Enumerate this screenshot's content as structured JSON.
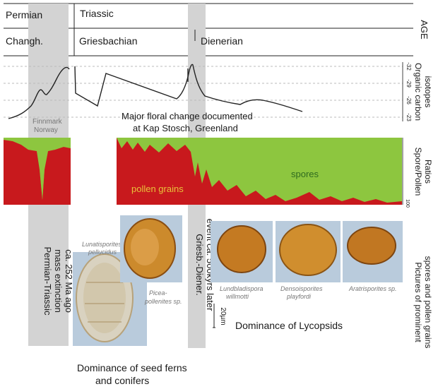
{
  "colors": {
    "pollen": "#c8191d",
    "spores": "#8dc63f",
    "event_band": "#d3d3d3",
    "curve": "#222222"
  },
  "age_rows": {
    "periods": [
      "Permian",
      "Triassic"
    ],
    "stages": [
      "Changh.",
      "Griesbachian",
      "Dienerian"
    ]
  },
  "right_labels": {
    "age": "AGE",
    "isotopes": "Organic carbon isotopes",
    "isotope_ticks": [
      "-32",
      "-29",
      "-26",
      "-23"
    ],
    "ratios": "Spore/Pollen Ratios",
    "ratio_tick": "100",
    "pictures": "Pictures of prominent spores and pollen grains"
  },
  "curve_labels": {
    "location": "Finnmark Norway",
    "floral_change": "Major floral change documented at Kap Stosch, Greenland"
  },
  "ratio_labels": {
    "pollen": "pollen grains",
    "spores": "spores"
  },
  "events": {
    "extinction": "Permian-Triassic mass extinction ca. 252 Ma ago",
    "griesb_diener": "Griesb.-Diener. event ca. 500kyrs later"
  },
  "specimens": {
    "lunatisporites": "Lunatisporites pellucidus",
    "picea": "Picea-pollenites sp.",
    "lundbladispora": "Lundbladispora willmotti",
    "densoisporites": "Densoisporites playfordi",
    "aratrisporites": "Aratrisporites sp."
  },
  "scale_bar": "20µm",
  "captions": {
    "seed_ferns": "Dominance of seed ferns and conifers",
    "lycopsids": "Dominance of Lycopsids"
  }
}
